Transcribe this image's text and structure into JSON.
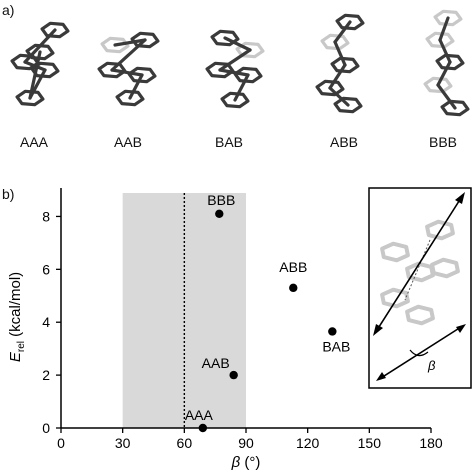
{
  "panel_a": {
    "label": "a)",
    "conformers": [
      "AAA",
      "AAB",
      "BAB",
      "ABB",
      "BBB"
    ]
  },
  "panel_b": {
    "label": "b)"
  },
  "colors": {
    "shade": "#d9d9d9",
    "point": "#000000",
    "axis": "#000000",
    "molecule_dark": "#3a3a3a",
    "molecule_light": "#c8c8c8"
  },
  "chart_data": {
    "type": "scatter",
    "title": "",
    "xlabel": "β (°)",
    "ylabel": "E_rel (kcal/mol)",
    "xlim": [
      0,
      180
    ],
    "ylim": [
      0,
      9
    ],
    "xticks": [
      0,
      30,
      60,
      90,
      120,
      150,
      180
    ],
    "yticks": [
      0,
      2,
      4,
      6,
      8
    ],
    "grid": false,
    "shaded_region": [
      30,
      90
    ],
    "reference_line_x": 60,
    "points": [
      {
        "label": "AAA",
        "x": 69,
        "y": 0.0
      },
      {
        "label": "AAB",
        "x": 84,
        "y": 2.0
      },
      {
        "label": "BAB",
        "x": 132,
        "y": 3.65
      },
      {
        "label": "ABB",
        "x": 113,
        "y": 5.3
      },
      {
        "label": "BBB",
        "x": 77,
        "y": 8.1
      }
    ],
    "inset_angle_label": "β"
  }
}
